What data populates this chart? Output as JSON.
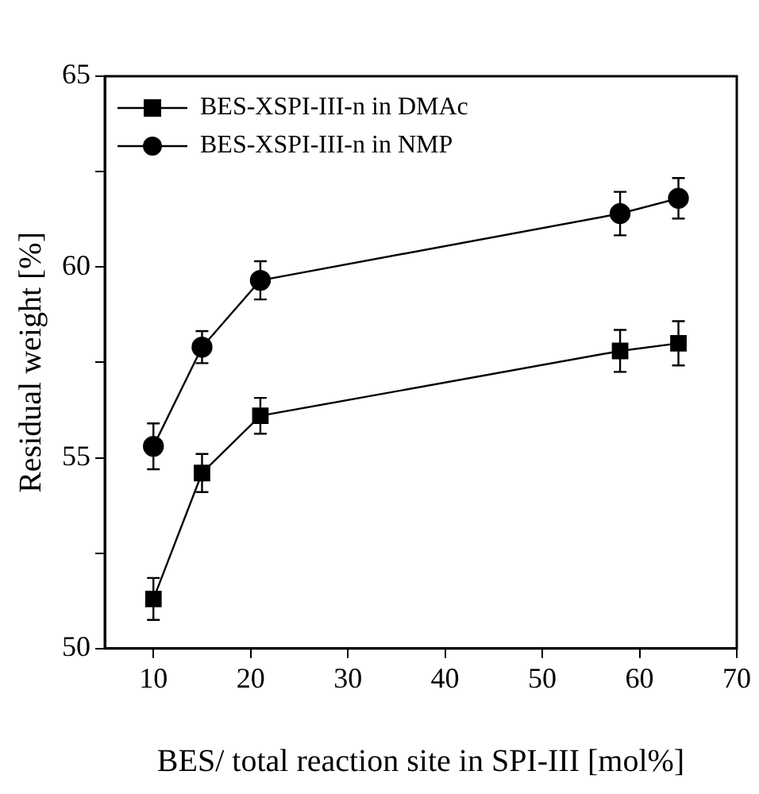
{
  "chart_data": {
    "type": "line",
    "xlabel": "BES/ total reaction site in SPI-III [mol%]",
    "ylabel": "Residual weight [%]",
    "xlim": [
      5,
      70
    ],
    "xticks": [
      10,
      20,
      30,
      40,
      50,
      60,
      70
    ],
    "ylim": [
      50,
      65
    ],
    "yticks": [
      50,
      {
        "value": 52.5,
        "label": null
      },
      55,
      {
        "value": 57.5,
        "label": null
      },
      60,
      {
        "value": 62.5,
        "label": null
      },
      65
    ],
    "grid": false,
    "legend": "top left",
    "line_style": "solid",
    "x": [
      10,
      15,
      21,
      58,
      64
    ],
    "series": [
      {
        "name": "BES-XSPI-III-n in DMAc",
        "color": "#000000",
        "marker": "square",
        "values": [
          51.3,
          54.6,
          56.1,
          57.8,
          58.0
        ],
        "errors": [
          0.55,
          0.5,
          0.47,
          0.55,
          0.58
        ]
      },
      {
        "name": "BES-XSPI-III-n in NMP",
        "color": "#000000",
        "marker": "circle",
        "values": [
          55.3,
          57.9,
          59.65,
          61.4,
          61.8
        ],
        "errors": [
          0.6,
          0.42,
          0.5,
          0.57,
          0.53
        ]
      }
    ]
  }
}
